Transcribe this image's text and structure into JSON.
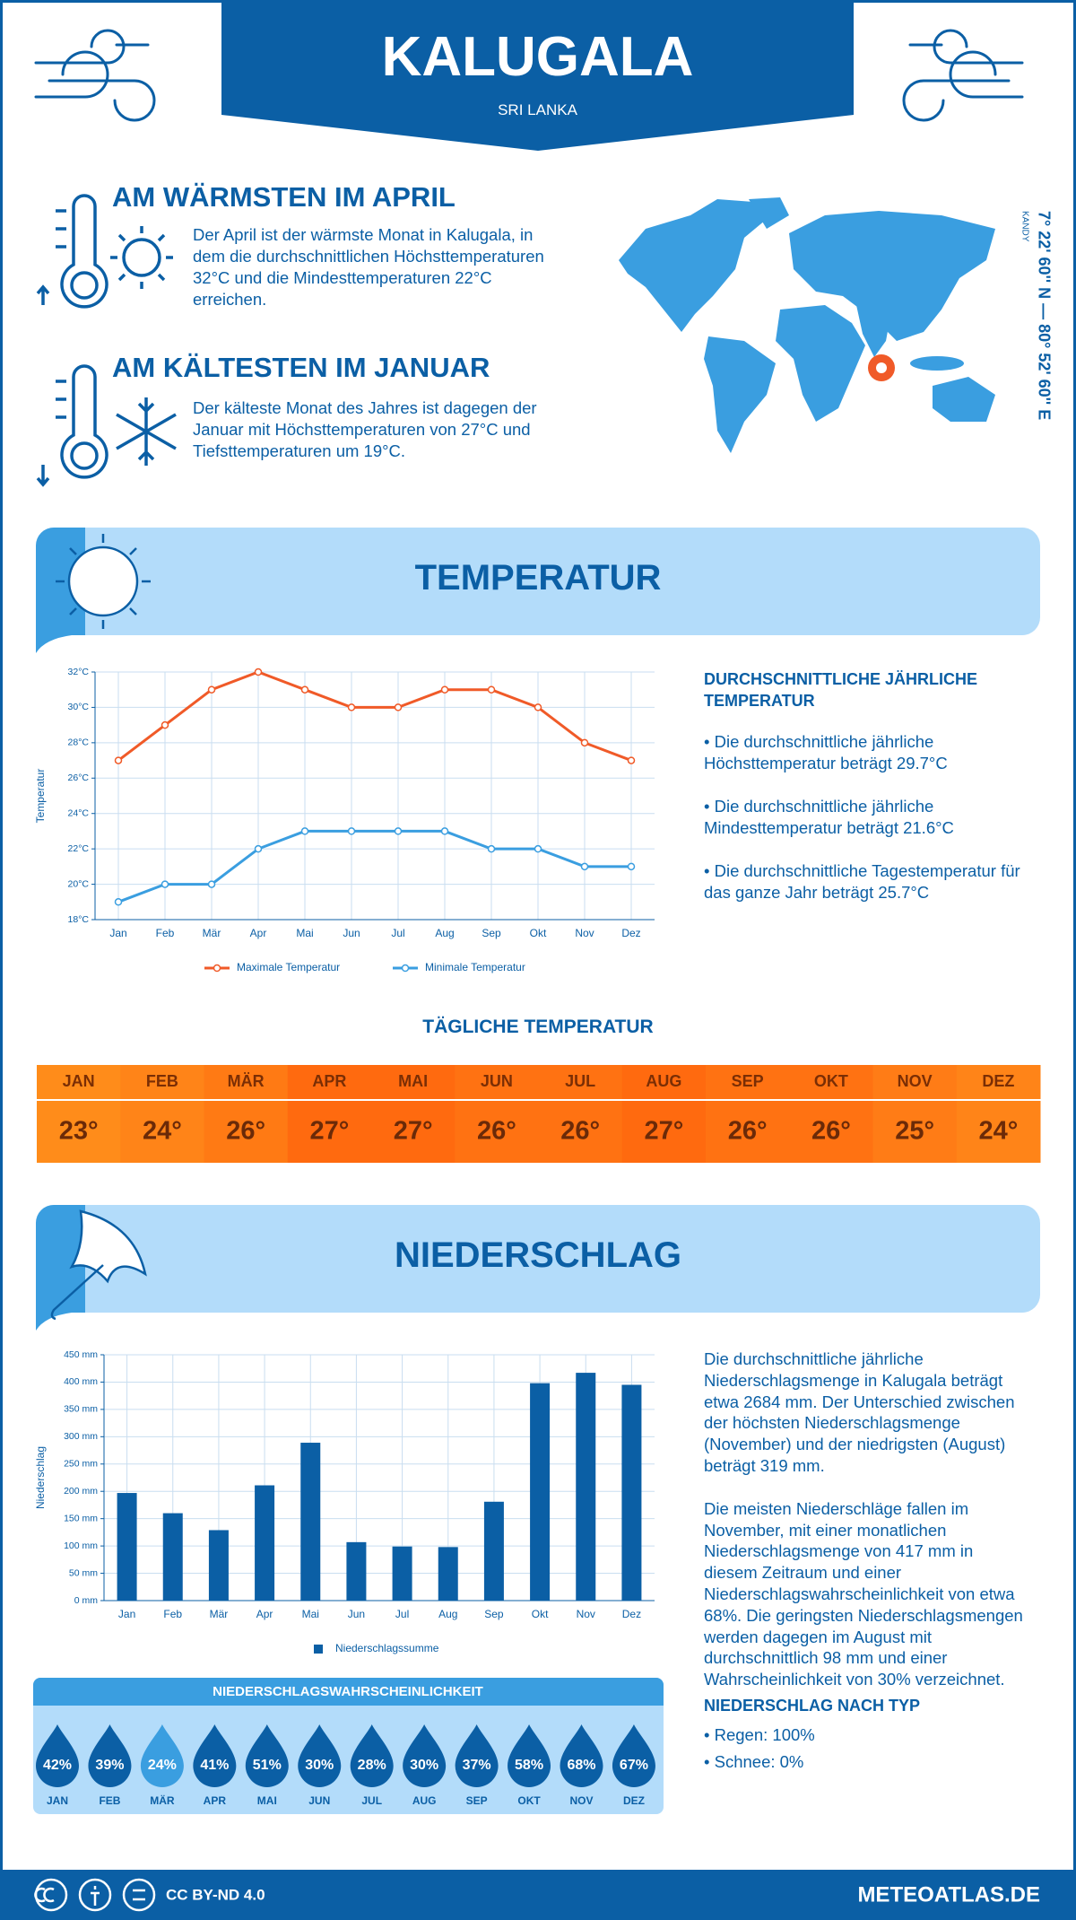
{
  "header": {
    "title": "KALUGALA",
    "subtitle": "SRI LANKA"
  },
  "warmest": {
    "title": "AM WÄRMSTEN IM APRIL",
    "text": "Der April ist der wärmste Monat in Kalugala, in dem die durchschnittlichen Höchsttemperaturen 32°C und die Mindesttemperaturen 22°C erreichen."
  },
  "coldest": {
    "title": "AM KÄLTESTEN IM JANUAR",
    "text": "Der kälteste Monat des Jahres ist dagegen der Januar mit Höchsttemperaturen von 27°C und Tiefsttemperaturen um 19°C."
  },
  "location": {
    "coordinates": "7° 22' 60'' N — 80° 52' 60'' E",
    "region": "KANDY"
  },
  "temperature_section": {
    "title": "TEMPERATUR"
  },
  "chart_data": [
    {
      "type": "line",
      "y_label": "Temperatur",
      "categories": [
        "Jan",
        "Feb",
        "Mär",
        "Apr",
        "Mai",
        "Jun",
        "Jul",
        "Aug",
        "Sep",
        "Okt",
        "Nov",
        "Dez"
      ],
      "series": [
        {
          "name": "Maximale Temperatur",
          "color": "#f05a28",
          "values": [
            27,
            29,
            31,
            32,
            31,
            30,
            30,
            31,
            31,
            30,
            28,
            27
          ]
        },
        {
          "name": "Minimale Temperatur",
          "color": "#3a9ee0",
          "values": [
            19,
            20,
            20,
            22,
            23,
            23,
            23,
            23,
            22,
            22,
            21,
            21
          ]
        }
      ],
      "ylim": [
        18,
        32
      ],
      "yticks": [
        {
          "value": 18,
          "label": "18°C"
        },
        {
          "value": 20,
          "label": "20°C"
        },
        {
          "value": 22,
          "label": "22°C"
        },
        {
          "value": 24,
          "label": "24°C"
        },
        {
          "value": 26,
          "label": "26°C"
        },
        {
          "value": 28,
          "label": "28°C"
        },
        {
          "value": 30,
          "label": "30°C"
        },
        {
          "value": 32,
          "label": "32°C"
        }
      ],
      "grid": true
    },
    {
      "type": "bar",
      "y_label": "Niederschlag",
      "categories": [
        "Jan",
        "Feb",
        "Mär",
        "Apr",
        "Mai",
        "Jun",
        "Jul",
        "Aug",
        "Sep",
        "Okt",
        "Nov",
        "Dez"
      ],
      "series": [
        {
          "name": "Niederschlagssumme",
          "color": "#0b5fa5",
          "values": [
            197,
            160,
            129,
            211,
            289,
            107,
            99,
            98,
            181,
            398,
            417,
            395
          ]
        }
      ],
      "ylim": [
        0,
        450
      ],
      "yticks": [
        {
          "value": 0,
          "label": "0 mm"
        },
        {
          "value": 50,
          "label": "50 mm"
        },
        {
          "value": 100,
          "label": "100 mm"
        },
        {
          "value": 150,
          "label": "150 mm"
        },
        {
          "value": 200,
          "label": "200 mm"
        },
        {
          "value": 250,
          "label": "250 mm"
        },
        {
          "value": 300,
          "label": "300 mm"
        },
        {
          "value": 350,
          "label": "350 mm"
        },
        {
          "value": 400,
          "label": "400 mm"
        },
        {
          "value": 450,
          "label": "450 mm"
        }
      ],
      "grid": true
    }
  ],
  "annual_temperature": {
    "heading": "DURCHSCHNITTLICHE JÄHRLICHE TEMPERATUR",
    "bullets": [
      "• Die durchschnittliche jährliche Höchsttemperatur beträgt 29.7°C",
      "• Die durchschnittliche jährliche Mindesttemperatur beträgt 21.6°C",
      "• Die durchschnittliche Tagestemperatur für das ganze Jahr beträgt 25.7°C"
    ]
  },
  "daily_temperature": {
    "title": "TÄGLICHE TEMPERATUR",
    "months": [
      "JAN",
      "FEB",
      "MÄR",
      "APR",
      "MAI",
      "JUN",
      "JUL",
      "AUG",
      "SEP",
      "OKT",
      "NOV",
      "DEZ"
    ],
    "values": [
      "23°",
      "24°",
      "26°",
      "27°",
      "27°",
      "26°",
      "26°",
      "27°",
      "26°",
      "26°",
      "25°",
      "24°"
    ]
  },
  "precipitation_section": {
    "title": "NIEDERSCHLAG"
  },
  "precipitation_text": {
    "paragraphs": [
      "Die durchschnittliche jährliche Niederschlagsmenge in Kalugala beträgt etwa 2684 mm. Der Unterschied zwischen der höchsten Niederschlagsmenge (November) und der niedrigsten (August) beträgt 319 mm.",
      "Die meisten Niederschläge fallen im November, mit einer monatlichen Niederschlagsmenge von 417 mm in diesem Zeitraum und einer Niederschlagswahrscheinlichkeit von etwa 68%. Die geringsten Niederschlagsmengen werden dagegen im August mit durchschnittlich 98 mm und einer Wahrscheinlichkeit von 30% verzeichnet."
    ],
    "type_heading": "NIEDERSCHLAG NACH TYP",
    "type_bullets": [
      "• Regen: 100%",
      "• Schnee: 0%"
    ]
  },
  "precipitation_probability": {
    "title": "NIEDERSCHLAGSWAHRSCHEINLICHKEIT",
    "months": [
      "JAN",
      "FEB",
      "MÄR",
      "APR",
      "MAI",
      "JUN",
      "JUL",
      "AUG",
      "SEP",
      "OKT",
      "NOV",
      "DEZ"
    ],
    "values": [
      "42%",
      "39%",
      "24%",
      "41%",
      "51%",
      "30%",
      "28%",
      "30%",
      "37%",
      "58%",
      "68%",
      "67%"
    ]
  },
  "footer": {
    "license": "CC BY-ND 4.0",
    "site": "METEOATLAS.DE"
  }
}
